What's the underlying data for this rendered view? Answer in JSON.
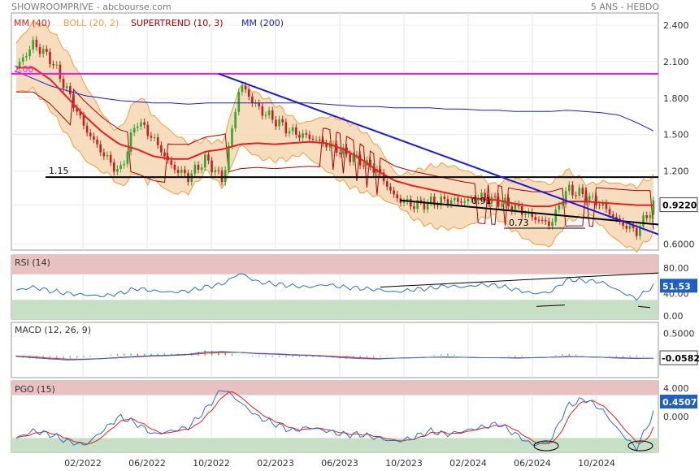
{
  "header": {
    "left": "SHOWROOMPRIVE - abcbourse.com",
    "right": "5 ANS - HEBDO"
  },
  "colors": {
    "ma40": "#e62020",
    "boll": "#f0a040",
    "boll_fill": "#f5d7b3",
    "supertrend": "#b00000",
    "ma200": "#1a1ad8",
    "up": "#2ea82e",
    "down": "#c81e1e",
    "magenta": "#e020e0",
    "rsi": "#2a6fc9",
    "macd": "#2a6fc9",
    "signal": "#e62020",
    "overbought": "#e8c1c1",
    "oversold": "#c7dfc4"
  },
  "chart_data": {
    "type": "line",
    "x_ticks": [
      "02/2022",
      "06/2022",
      "10/2022",
      "02/2023",
      "06/2023",
      "10/2023",
      "02/2024",
      "06/2024",
      "10/2024"
    ],
    "price_panel": {
      "legend": [
        "MM (40)",
        "BOLL (20, 2)",
        "SUPERTREND (10, 3)",
        "MM (200)"
      ],
      "y_ticks": [
        "2.400",
        "2.100",
        "1.800",
        "1.500",
        "1.200",
        "0.9220",
        "0.6000"
      ],
      "ylim": [
        0.55,
        2.5
      ],
      "last_value": "0.9220",
      "level_labels": [
        "2.00",
        "1.15",
        "0.91",
        "0.73"
      ],
      "close_approx": [
        2.05,
        2.25,
        2.12,
        1.85,
        1.55,
        1.35,
        1.18,
        1.62,
        1.46,
        1.24,
        1.15,
        1.3,
        1.12,
        1.92,
        1.72,
        1.62,
        1.52,
        1.48,
        1.42,
        1.35,
        1.28,
        1.2,
        0.98,
        0.92,
        0.94,
        0.96,
        0.95,
        0.99,
        0.95,
        0.9,
        0.82,
        0.76,
        1.05,
        1.0,
        0.92,
        0.78,
        0.7,
        0.92
      ],
      "ma40_approx": [
        2.05,
        2.05,
        1.95,
        1.8,
        1.65,
        1.52,
        1.42,
        1.38,
        1.32,
        1.3,
        1.3,
        1.36,
        1.38,
        1.42,
        1.43,
        1.42,
        1.43,
        1.44,
        1.43,
        1.38,
        1.3,
        1.2,
        1.12,
        1.08,
        1.05,
        1.02,
        0.99,
        0.97,
        0.96,
        0.93,
        0.91,
        0.91,
        0.95,
        0.95,
        0.94,
        0.93,
        0.92,
        0.92
      ],
      "ma200_approx": [
        2.02,
        1.96,
        1.9,
        1.86,
        1.82,
        1.8,
        1.78,
        1.77,
        1.76,
        1.76,
        1.75,
        1.76,
        1.76,
        1.76,
        1.76,
        1.76,
        1.76,
        1.76,
        1.75,
        1.74,
        1.73,
        1.73,
        1.72,
        1.72,
        1.72,
        1.71,
        1.71,
        1.7,
        1.7,
        1.69,
        1.69,
        1.69,
        1.7,
        1.69,
        1.68,
        1.66,
        1.6,
        1.53
      ]
    },
    "rsi_panel": {
      "label": "RSI (14)",
      "y_ticks": [
        "80.00",
        "40.00",
        "0.00"
      ],
      "ylim": [
        0,
        100
      ],
      "last_value": "51.53",
      "values_approx": [
        45,
        50,
        44,
        40,
        38,
        36,
        40,
        48,
        44,
        42,
        44,
        50,
        55,
        72,
        58,
        55,
        52,
        50,
        54,
        50,
        48,
        46,
        42,
        46,
        48,
        52,
        50,
        54,
        52,
        46,
        40,
        42,
        62,
        60,
        58,
        44,
        32,
        52
      ]
    },
    "macd_panel": {
      "label": "MACD (12, 26, 9)",
      "y_ticks": [
        "0.5000",
        "0.0000"
      ],
      "ylim": [
        -0.5,
        0.75
      ],
      "last_value": "-0.0582",
      "macd_approx": [
        -0.02,
        -0.05,
        -0.08,
        -0.1,
        -0.09,
        -0.07,
        -0.04,
        -0.02,
        0.0,
        0.01,
        0.03,
        0.08,
        0.09,
        0.07,
        0.04,
        0.03,
        0.01,
        0.0,
        -0.02,
        -0.05,
        -0.07,
        -0.08,
        -0.06,
        -0.05,
        -0.04,
        -0.03,
        -0.04,
        -0.05,
        -0.05,
        -0.06,
        -0.05,
        -0.04,
        -0.02,
        -0.03,
        -0.04,
        -0.06,
        -0.07,
        -0.06
      ],
      "signal_approx": [
        -0.01,
        -0.03,
        -0.06,
        -0.08,
        -0.08,
        -0.07,
        -0.05,
        -0.03,
        -0.01,
        0.0,
        0.02,
        0.05,
        0.07,
        0.07,
        0.05,
        0.04,
        0.02,
        0.01,
        -0.01,
        -0.03,
        -0.05,
        -0.07,
        -0.06,
        -0.05,
        -0.04,
        -0.04,
        -0.04,
        -0.05,
        -0.05,
        -0.05,
        -0.05,
        -0.04,
        -0.03,
        -0.03,
        -0.04,
        -0.05,
        -0.06,
        -0.06
      ]
    },
    "pgo_panel": {
      "label": "PGO (15)",
      "y_ticks": [
        "4.000",
        "0.000"
      ],
      "ylim": [
        -5,
        5
      ],
      "last_value": "0.4507",
      "values_approx": [
        -3,
        -2,
        -2.5,
        -3.5,
        -4,
        -2,
        0,
        -1,
        -2.5,
        -2,
        -1.5,
        1,
        4,
        2,
        0,
        -1,
        -2,
        -1.5,
        -2,
        -2.5,
        -2.5,
        -3,
        -3.5,
        -3,
        -2,
        -2.5,
        -2,
        -1.5,
        -1,
        -2.5,
        -4,
        -3.5,
        1.5,
        2.5,
        1,
        -2,
        -4.5,
        0.45
      ]
    }
  }
}
